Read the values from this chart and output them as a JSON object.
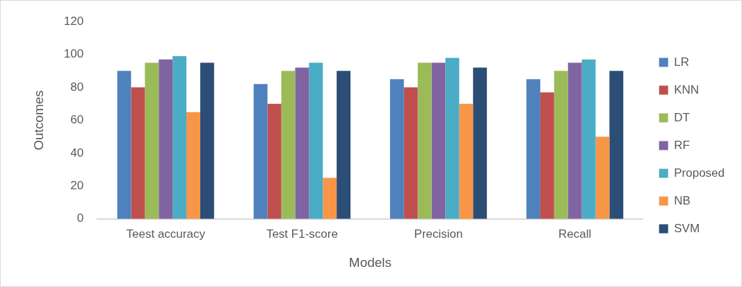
{
  "chart_data": {
    "type": "bar",
    "xlabel": "Models",
    "ylabel": "Outcomes",
    "categories": [
      "Teest accuracy",
      "Test F1-score",
      "Precision",
      "Recall"
    ],
    "series": [
      {
        "name": "LR",
        "color": "#4f81bd",
        "values": [
          90,
          82,
          85,
          85
        ]
      },
      {
        "name": "KNN",
        "color": "#c0504d",
        "values": [
          80,
          70,
          80,
          77
        ]
      },
      {
        "name": "DT",
        "color": "#9bbb59",
        "values": [
          95,
          90,
          95,
          90
        ]
      },
      {
        "name": "RF",
        "color": "#8064a2",
        "values": [
          97,
          92,
          95,
          95
        ]
      },
      {
        "name": "Proposed",
        "color": "#4bacc6",
        "values": [
          99,
          95,
          98,
          97
        ]
      },
      {
        "name": "NB",
        "color": "#f79646",
        "values": [
          65,
          25,
          70,
          50
        ]
      },
      {
        "name": "SVM",
        "color": "#2c4d75",
        "values": [
          95,
          90,
          92,
          90
        ]
      }
    ],
    "ylim": [
      0,
      120
    ],
    "yticks": [
      0,
      20,
      40,
      60,
      80,
      100,
      120
    ],
    "legend": "right"
  }
}
